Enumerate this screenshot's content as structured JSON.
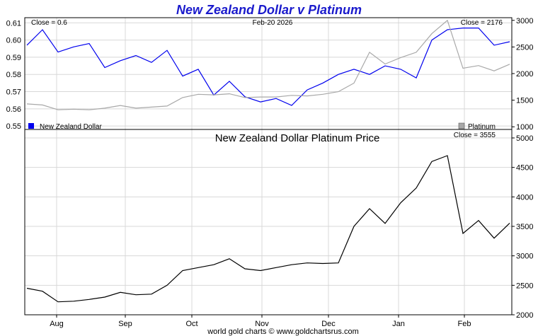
{
  "chart_data": [
    {
      "type": "line",
      "title": "New Zealand Dollar v Platinum",
      "date_label": "Feb-20 2026",
      "close_left": "Close = 0.6",
      "close_right": "Close = 2176",
      "x": [
        "Jul 28",
        "Aug 1",
        "Aug 8",
        "Aug 15",
        "Aug 22",
        "Aug 29",
        "Sep 5",
        "Sep 12",
        "Sep 19",
        "Sep 26",
        "Oct 3",
        "Oct 10",
        "Oct 17",
        "Oct 24",
        "Oct 31",
        "Nov 7",
        "Nov 14",
        "Nov 21",
        "Nov 28",
        "Dec 5",
        "Dec 12",
        "Dec 19",
        "Dec 26",
        "Jan 2",
        "Jan 9",
        "Jan 16",
        "Jan 23",
        "Jan 27",
        "Feb 3",
        "Feb 10",
        "Feb 17",
        "Feb 20"
      ],
      "xticks": [
        "Aug",
        "Sep",
        "Oct",
        "Nov",
        "Dec",
        "Jan",
        "Feb"
      ],
      "y_left_ticks": [
        "0.61",
        "0.60",
        "0.59",
        "0.58",
        "0.57",
        "0.56",
        "0.55"
      ],
      "y_right_ticks": [
        "3000",
        "2500",
        "2000",
        "1500",
        "1000"
      ],
      "ylim_left": [
        0.548,
        0.613
      ],
      "ylim_right": [
        950,
        3050
      ],
      "series": [
        {
          "name": "New Zealand Dollar",
          "color": "#0000ee",
          "axis": "left",
          "values": [
            0.597,
            0.606,
            0.593,
            0.596,
            0.598,
            0.584,
            0.588,
            0.591,
            0.587,
            0.594,
            0.579,
            0.583,
            0.568,
            0.576,
            0.567,
            0.564,
            0.566,
            0.562,
            0.571,
            0.575,
            0.58,
            0.583,
            0.58,
            0.585,
            0.583,
            0.578,
            0.6,
            0.606,
            0.607,
            0.607,
            0.597,
            0.599
          ]
        },
        {
          "name": "Platinum",
          "color": "#a8a8a8",
          "axis": "right",
          "values": [
            1430,
            1410,
            1320,
            1330,
            1320,
            1350,
            1400,
            1350,
            1370,
            1390,
            1550,
            1610,
            1600,
            1620,
            1550,
            1560,
            1560,
            1590,
            1580,
            1610,
            1660,
            1820,
            2400,
            2180,
            2300,
            2400,
            2750,
            3000,
            2100,
            2150,
            2050,
            2176
          ]
        }
      ]
    },
    {
      "type": "line",
      "title": "New Zealand Dollar Platinum Price",
      "close_label": "Close = 3555",
      "x": [
        "Jul 28",
        "Aug 1",
        "Aug 8",
        "Aug 15",
        "Aug 22",
        "Aug 29",
        "Sep 5",
        "Sep 12",
        "Sep 19",
        "Sep 26",
        "Oct 3",
        "Oct 10",
        "Oct 17",
        "Oct 24",
        "Oct 31",
        "Nov 7",
        "Nov 14",
        "Nov 21",
        "Nov 28",
        "Dec 5",
        "Dec 12",
        "Dec 19",
        "Dec 26",
        "Jan 2",
        "Jan 9",
        "Jan 16",
        "Jan 23",
        "Jan 27",
        "Feb 3",
        "Feb 10",
        "Feb 17",
        "Feb 20"
      ],
      "xticks": [
        "Aug",
        "Sep",
        "Oct",
        "Nov",
        "Dec",
        "Jan",
        "Feb"
      ],
      "yticks": [
        "5000",
        "4500",
        "4000",
        "3500",
        "3000",
        "2500",
        "2000"
      ],
      "ylim": [
        2000,
        5000
      ],
      "series": [
        {
          "name": "New Zealand Dollar Platinum Price",
          "color": "#000000",
          "values": [
            2450,
            2400,
            2220,
            2230,
            2260,
            2300,
            2380,
            2340,
            2350,
            2500,
            2750,
            2800,
            2850,
            2950,
            2780,
            2750,
            2800,
            2850,
            2880,
            2870,
            2880,
            3500,
            3800,
            3550,
            3900,
            4150,
            4600,
            4700,
            3380,
            3600,
            3300,
            3555
          ]
        }
      ]
    }
  ],
  "legend": {
    "nzd": "New Zealand Dollar",
    "platinum": "Platinum"
  },
  "footer": "world gold charts © www.goldchartsrus.com"
}
